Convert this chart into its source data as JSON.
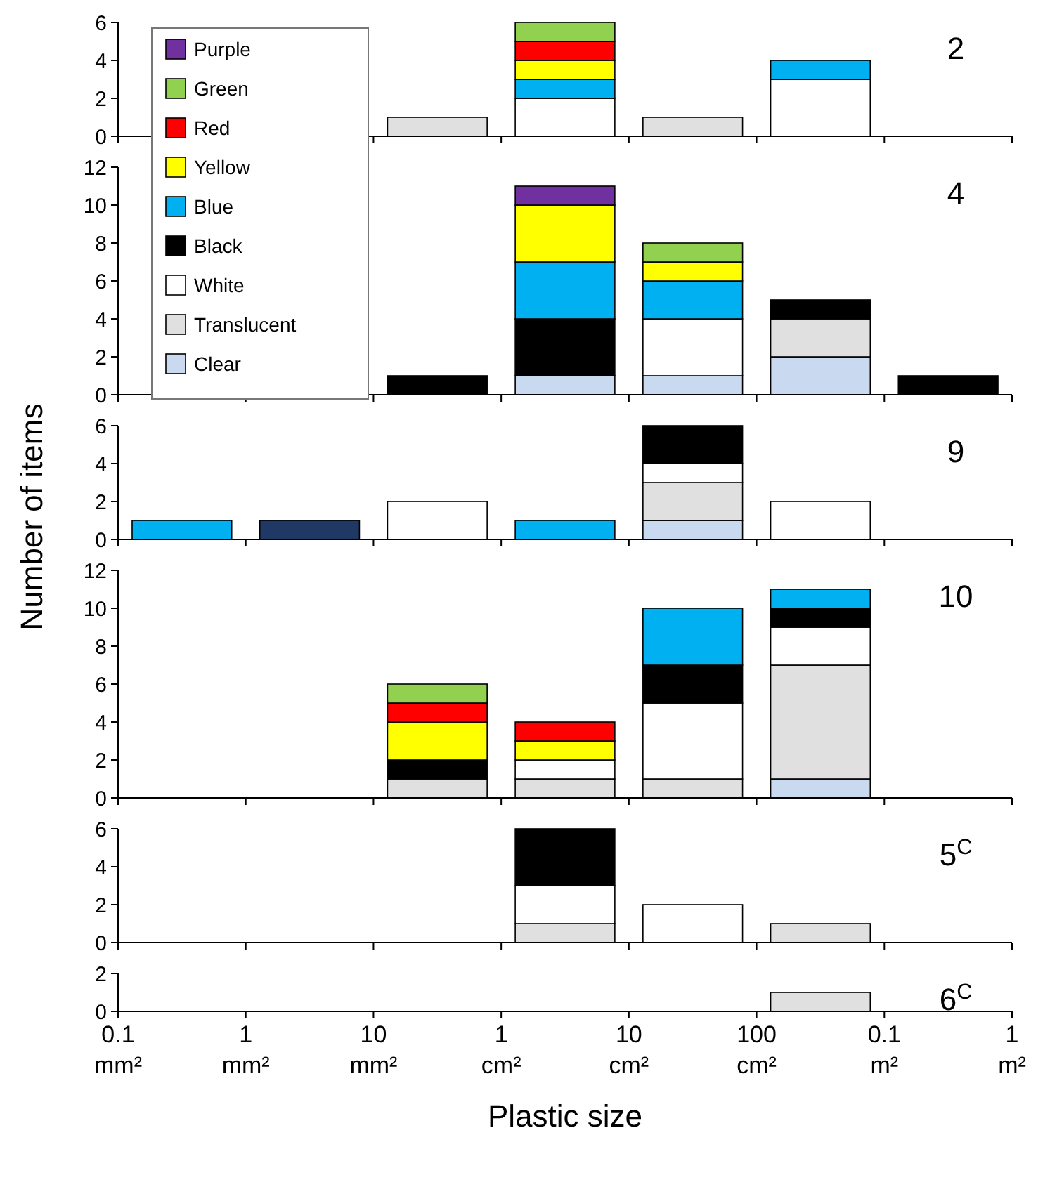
{
  "chart_data": [
    {
      "type": "bar",
      "title": "2",
      "stacked": true,
      "tick_labels": "y",
      "categories": [
        null,
        null,
        null,
        null,
        null,
        null,
        null,
        null,
        null,
        null,
        null,
        null,
        null,
        null,
        null
      ],
      "ylim": [
        0,
        6
      ],
      "yticks": [
        0,
        2,
        4,
        6
      ],
      "series": [
        {
          "color": "#e0e0e0",
          "values": [
            null,
            null,
            null,
            null,
            null,
            1,
            null,
            null,
            null,
            1,
            null,
            null,
            null,
            null,
            null
          ]
        },
        {
          "color": "#ffffff",
          "values": [
            null,
            null,
            null,
            null,
            null,
            null,
            null,
            2,
            null,
            null,
            null,
            3,
            null,
            null,
            null
          ]
        },
        {
          "color": "#00b0f0",
          "values": [
            null,
            null,
            null,
            null,
            null,
            null,
            null,
            1,
            null,
            null,
            null,
            1,
            null,
            null,
            null
          ]
        },
        {
          "color": "#ffff00",
          "values": [
            null,
            null,
            null,
            null,
            null,
            null,
            null,
            1,
            null,
            null,
            null,
            null,
            null,
            null,
            null
          ]
        },
        {
          "color": "#ff0000",
          "values": [
            null,
            null,
            null,
            null,
            null,
            null,
            null,
            1,
            null,
            null,
            null,
            null,
            null,
            null,
            null
          ]
        },
        {
          "color": "#92d050",
          "values": [
            null,
            null,
            null,
            null,
            null,
            null,
            null,
            1,
            null,
            null,
            null,
            null,
            null,
            null,
            null
          ]
        }
      ]
    },
    {
      "type": "bar",
      "title": "4",
      "stacked": true,
      "tick_labels": "y",
      "legend": "top left",
      "categories": [
        null,
        null,
        null,
        null,
        null,
        null,
        null,
        null,
        null,
        null,
        null,
        null,
        null,
        null,
        null
      ],
      "ylim": [
        0,
        12
      ],
      "yticks": [
        0,
        2,
        4,
        6,
        8,
        10,
        12
      ],
      "series": [
        {
          "name": "Clear",
          "color": "#c9d9f0",
          "values": [
            null,
            null,
            null,
            null,
            null,
            null,
            null,
            1,
            null,
            1,
            null,
            2,
            null,
            null,
            null
          ]
        },
        {
          "name": "Translucent",
          "color": "#e0e0e0",
          "values": [
            null,
            null,
            null,
            null,
            null,
            null,
            null,
            null,
            null,
            null,
            null,
            2,
            null,
            null,
            null
          ]
        },
        {
          "name": "White",
          "color": "#ffffff",
          "values": [
            null,
            null,
            null,
            null,
            null,
            null,
            null,
            null,
            null,
            3,
            null,
            null,
            null,
            null,
            null
          ]
        },
        {
          "name": "Black",
          "color": "#000000",
          "values": [
            null,
            null,
            null,
            null,
            null,
            1,
            null,
            3,
            null,
            null,
            null,
            1,
            null,
            1,
            null
          ]
        },
        {
          "name": "Blue",
          "color": "#00b0f0",
          "values": [
            null,
            null,
            null,
            null,
            null,
            null,
            null,
            3,
            null,
            2,
            null,
            null,
            null,
            null,
            null
          ]
        },
        {
          "name": "Yellow",
          "color": "#ffff00",
          "values": [
            null,
            null,
            null,
            null,
            null,
            null,
            null,
            3,
            null,
            1,
            null,
            null,
            null,
            null,
            null
          ]
        },
        {
          "name": "Red",
          "color": "#ff0000",
          "values": [
            null,
            null,
            null,
            null,
            null,
            null,
            null,
            null,
            null,
            null,
            null,
            null,
            null,
            null,
            null
          ]
        },
        {
          "name": "Green",
          "color": "#92d050",
          "values": [
            null,
            null,
            null,
            null,
            null,
            null,
            null,
            null,
            null,
            1,
            null,
            null,
            null,
            null,
            null
          ]
        },
        {
          "name": "Purple",
          "color": "#7030a0",
          "values": [
            null,
            null,
            null,
            null,
            null,
            null,
            null,
            1,
            null,
            null,
            null,
            null,
            null,
            null,
            null
          ]
        }
      ]
    },
    {
      "type": "bar",
      "title": "9",
      "stacked": true,
      "tick_labels": "y",
      "ylabel": "Number of items",
      "categories": [
        null,
        null,
        null,
        null,
        null,
        null,
        null,
        null,
        null,
        null,
        null,
        null,
        null,
        null,
        null
      ],
      "ylim": [
        0,
        6
      ],
      "yticks": [
        0,
        2,
        4,
        6
      ],
      "series": [
        {
          "color": "#1f3864",
          "values": [
            null,
            null,
            null,
            1,
            null,
            null,
            null,
            null,
            null,
            null,
            null,
            null,
            null,
            null,
            null
          ]
        },
        {
          "color": "#c9d9f0",
          "values": [
            null,
            null,
            null,
            null,
            null,
            null,
            null,
            null,
            null,
            1,
            null,
            null,
            null,
            null,
            null
          ]
        },
        {
          "color": "#e0e0e0",
          "values": [
            null,
            null,
            null,
            null,
            null,
            null,
            null,
            null,
            null,
            2,
            null,
            null,
            null,
            null,
            null
          ]
        },
        {
          "color": "#ffffff",
          "values": [
            null,
            null,
            null,
            null,
            null,
            2,
            null,
            null,
            null,
            1,
            null,
            2,
            null,
            null,
            null
          ]
        },
        {
          "color": "#000000",
          "values": [
            null,
            null,
            null,
            null,
            null,
            null,
            null,
            null,
            null,
            2,
            null,
            null,
            null,
            null,
            null
          ]
        },
        {
          "color": "#00b0f0",
          "values": [
            null,
            1,
            null,
            null,
            null,
            null,
            null,
            1,
            null,
            null,
            null,
            null,
            null,
            null,
            null
          ]
        }
      ]
    },
    {
      "type": "bar",
      "title": "10",
      "stacked": true,
      "tick_labels": "y",
      "categories": [
        null,
        null,
        null,
        null,
        null,
        null,
        null,
        null,
        null,
        null,
        null,
        null,
        null,
        null,
        null
      ],
      "ylim": [
        0,
        12
      ],
      "yticks": [
        0,
        2,
        4,
        6,
        8,
        10,
        12
      ],
      "series": [
        {
          "color": "#c9d9f0",
          "values": [
            null,
            null,
            null,
            null,
            null,
            null,
            null,
            null,
            null,
            null,
            null,
            1,
            null,
            null,
            null
          ]
        },
        {
          "color": "#e0e0e0",
          "values": [
            null,
            null,
            null,
            null,
            null,
            1,
            null,
            1,
            null,
            1,
            null,
            6,
            null,
            null,
            null
          ]
        },
        {
          "color": "#ffffff",
          "values": [
            null,
            null,
            null,
            null,
            null,
            null,
            null,
            1,
            null,
            4,
            null,
            2,
            null,
            null,
            null
          ]
        },
        {
          "color": "#000000",
          "values": [
            null,
            null,
            null,
            null,
            null,
            1,
            null,
            null,
            null,
            2,
            null,
            1,
            null,
            null,
            null
          ]
        },
        {
          "color": "#00b0f0",
          "values": [
            null,
            null,
            null,
            null,
            null,
            null,
            null,
            null,
            null,
            3,
            null,
            1,
            null,
            null,
            null
          ]
        },
        {
          "color": "#ffff00",
          "values": [
            null,
            null,
            null,
            null,
            null,
            2,
            null,
            1,
            null,
            null,
            null,
            null,
            null,
            null,
            null
          ]
        },
        {
          "color": "#ff0000",
          "values": [
            null,
            null,
            null,
            null,
            null,
            1,
            null,
            1,
            null,
            null,
            null,
            null,
            null,
            null,
            null
          ]
        },
        {
          "color": "#92d050",
          "values": [
            null,
            null,
            null,
            null,
            null,
            1,
            null,
            null,
            null,
            null,
            null,
            null,
            null,
            null,
            null
          ]
        }
      ]
    },
    {
      "type": "bar",
      "title": "5$^{C}$",
      "stacked": true,
      "tick_labels": "y",
      "categories": [
        null,
        null,
        null,
        null,
        null,
        null,
        null,
        null,
        null,
        null,
        null,
        null,
        null,
        null,
        null
      ],
      "ylim": [
        0,
        6
      ],
      "yticks": [
        0,
        2,
        4,
        6
      ],
      "series": [
        {
          "color": "#e0e0e0",
          "values": [
            null,
            null,
            null,
            null,
            null,
            null,
            null,
            1,
            null,
            null,
            null,
            1,
            null,
            null,
            null
          ]
        },
        {
          "color": "#ffffff",
          "values": [
            null,
            null,
            null,
            null,
            null,
            null,
            null,
            2,
            null,
            2,
            null,
            null,
            null,
            null,
            null
          ]
        },
        {
          "color": "#000000",
          "values": [
            null,
            null,
            null,
            null,
            null,
            null,
            null,
            3,
            null,
            null,
            null,
            null,
            null,
            null,
            null
          ]
        }
      ]
    },
    {
      "type": "bar",
      "title": "6$^{C}$",
      "stacked": true,
      "xlabel": "Plastic size",
      "categories": [
        "0.1 mm²",
        null,
        "1 mm²",
        null,
        "10 mm²",
        null,
        "1 cm²",
        null,
        "10 cm²",
        null,
        "100 cm²",
        null,
        "0.1 m²",
        null,
        "1 m²"
      ],
      "ylim": [
        0,
        2
      ],
      "yticks": [
        0,
        2
      ],
      "series": [
        {
          "color": "#e0e0e0",
          "values": [
            null,
            null,
            null,
            null,
            null,
            null,
            null,
            null,
            null,
            null,
            null,
            1,
            null,
            null,
            null
          ]
        }
      ]
    }
  ]
}
